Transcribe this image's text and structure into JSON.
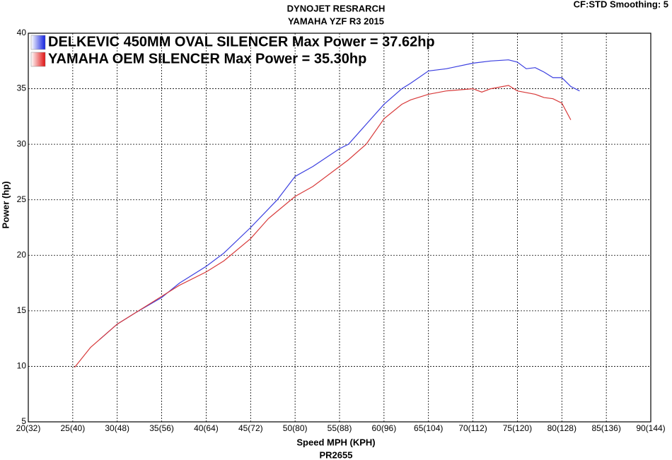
{
  "chart_data": {
    "type": "line",
    "title": "DYNOJET RESRARCH",
    "subtitle": "YAMAHA YZF R3 2015",
    "corner_note": "CF:STD Smoothing: 5",
    "x_label": "Speed MPH (KPH)",
    "y_label": "Power (hp)",
    "footer": "PR2655",
    "grid": true,
    "xlim": [
      20,
      90
    ],
    "ylim": [
      5,
      40
    ],
    "xticks": [
      {
        "value": 20,
        "label": "20(32)"
      },
      {
        "value": 25,
        "label": "25(40)"
      },
      {
        "value": 30,
        "label": "30(48)"
      },
      {
        "value": 35,
        "label": "35(56)"
      },
      {
        "value": 40,
        "label": "40(64)"
      },
      {
        "value": 45,
        "label": "45(72)"
      },
      {
        "value": 50,
        "label": "50(80)"
      },
      {
        "value": 55,
        "label": "55(88)"
      },
      {
        "value": 60,
        "label": "60(96)"
      },
      {
        "value": 65,
        "label": "65(104)"
      },
      {
        "value": 70,
        "label": "70(112)"
      },
      {
        "value": 75,
        "label": "75(120)"
      },
      {
        "value": 80,
        "label": "80(128)"
      },
      {
        "value": 85,
        "label": "85(136)"
      },
      {
        "value": 90,
        "label": "90(144)"
      }
    ],
    "yticks": [
      5,
      10,
      15,
      20,
      25,
      30,
      35,
      40
    ],
    "series": [
      {
        "name": "DELKEVIC 450MM OVAL SILENCER Max Power = 37.62hp",
        "color": "#3a3ee0",
        "x": [
          28,
          30,
          32,
          35,
          37,
          40,
          42,
          45,
          48,
          50,
          52,
          55,
          56,
          58,
          60,
          62,
          63,
          65,
          67,
          70,
          72,
          74,
          75,
          76,
          77,
          78,
          79,
          80,
          81,
          82
        ],
        "values": [
          12.4,
          13.8,
          14.8,
          16.2,
          17.5,
          19.0,
          20.2,
          22.5,
          25.0,
          27.1,
          28.0,
          29.6,
          30.0,
          31.8,
          33.6,
          35.0,
          35.5,
          36.6,
          36.8,
          37.3,
          37.5,
          37.6,
          37.4,
          36.8,
          36.9,
          36.5,
          36.0,
          36.0,
          35.2,
          34.8
        ]
      },
      {
        "name": "YAMAHA OEM SILENCER Max Power = 35.30hp",
        "color": "#d83a3a",
        "x": [
          25.2,
          27,
          30,
          32,
          35,
          37,
          40,
          42,
          45,
          47,
          50,
          52,
          55,
          56,
          58,
          60,
          62,
          63,
          65,
          67,
          70,
          71,
          72,
          74,
          75,
          77,
          78,
          79,
          80,
          81
        ],
        "values": [
          9.9,
          11.7,
          13.8,
          14.8,
          16.3,
          17.3,
          18.5,
          19.5,
          21.5,
          23.3,
          25.3,
          26.2,
          28.0,
          28.6,
          30.0,
          32.3,
          33.6,
          34.0,
          34.5,
          34.8,
          35.0,
          34.7,
          35.0,
          35.3,
          34.8,
          34.5,
          34.2,
          34.1,
          33.7,
          32.2
        ]
      }
    ]
  }
}
